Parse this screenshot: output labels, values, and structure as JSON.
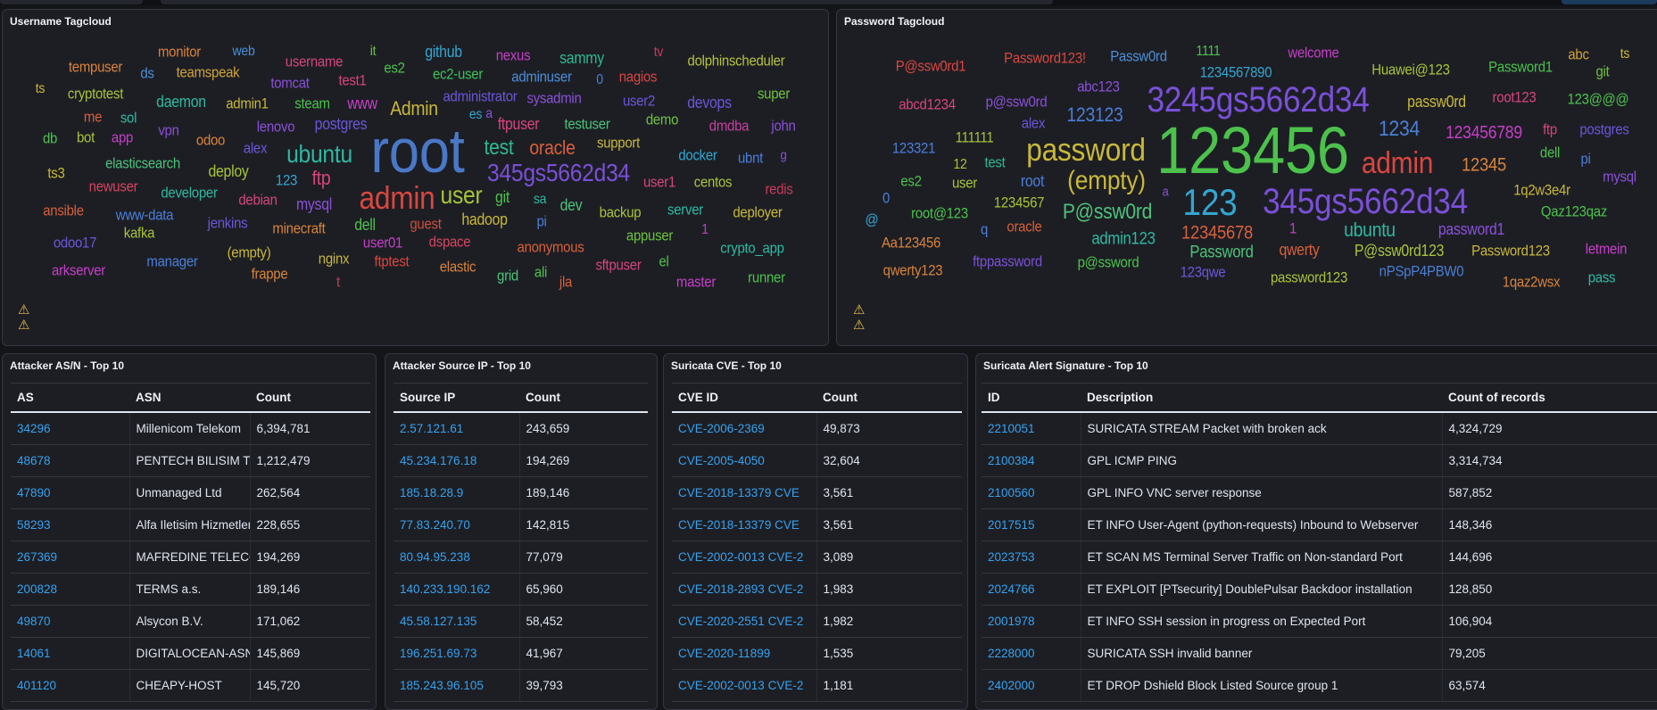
{
  "username_cloud": {
    "title": "Username Tagcloud",
    "warning_icon": "warning-triangle-icon",
    "words": [
      {
        "text": "monitor",
        "color": "#d8833a"
      },
      {
        "text": "web",
        "color": "#4a8fd8"
      },
      {
        "text": "username",
        "color": "#d6457f"
      },
      {
        "text": "it",
        "color": "#6cc23e"
      },
      {
        "text": "github",
        "color": "#34a6d0"
      },
      {
        "text": "nexus",
        "color": "#c63fc8"
      },
      {
        "text": "sammy",
        "color": "#2fb890"
      },
      {
        "text": "tv",
        "color": "#c93a5a"
      },
      {
        "text": "dolphinscheduler",
        "color": "#b4c23a"
      },
      {
        "text": "tempuser",
        "color": "#d8833a"
      },
      {
        "text": "ds",
        "color": "#4a8fd8"
      },
      {
        "text": "teamspeak",
        "color": "#d0a33a"
      },
      {
        "text": "tomcat",
        "color": "#8a50d8"
      },
      {
        "text": "test1",
        "color": "#d6457f"
      },
      {
        "text": "es2",
        "color": "#4cc24c"
      },
      {
        "text": "ec2-user",
        "color": "#3ec15a"
      },
      {
        "text": "adminuser",
        "color": "#4a8fd8"
      },
      {
        "text": "0",
        "color": "#4a7fd8"
      },
      {
        "text": "nagios",
        "color": "#d9473f"
      },
      {
        "text": "ts",
        "color": "#c8b83a"
      },
      {
        "text": "cryptotest",
        "color": "#a6c43a"
      },
      {
        "text": "daemon",
        "color": "#2fb8a0"
      },
      {
        "text": "admin1",
        "color": "#c8b83a"
      },
      {
        "text": "steam",
        "color": "#4cc24c"
      },
      {
        "text": "www",
        "color": "#c63fc8"
      },
      {
        "text": "administrator",
        "color": "#6a56d8"
      },
      {
        "text": "a",
        "color": "#8a50d8"
      },
      {
        "text": "sysadmin",
        "color": "#8a50d8"
      },
      {
        "text": "user2",
        "color": "#6a56d8"
      },
      {
        "text": "devops",
        "color": "#6a56d8"
      },
      {
        "text": "super",
        "color": "#6cc23e"
      },
      {
        "text": "me",
        "color": "#d8603a"
      },
      {
        "text": "sol",
        "color": "#2fb8a0"
      },
      {
        "text": "lenovo",
        "color": "#8a50d8"
      },
      {
        "text": "postgres",
        "color": "#6a56d8"
      },
      {
        "text": "Admin",
        "color": "#c8b83a"
      },
      {
        "text": "es",
        "color": "#34a6d0"
      },
      {
        "text": "ftpuser",
        "color": "#d6457f"
      },
      {
        "text": "testuser",
        "color": "#4cc27a"
      },
      {
        "text": "demo",
        "color": "#6cc23e"
      },
      {
        "text": "dmdba",
        "color": "#c63fa0"
      },
      {
        "text": "john",
        "color": "#8a50d8"
      },
      {
        "text": "db",
        "color": "#4cc24c"
      },
      {
        "text": "bot",
        "color": "#a6c43a"
      },
      {
        "text": "app",
        "color": "#c63fc8"
      },
      {
        "text": "vpn",
        "color": "#8a50d8"
      },
      {
        "text": "odoo",
        "color": "#d8833a"
      },
      {
        "text": "alex",
        "color": "#6a56d8"
      },
      {
        "text": "ubuntu",
        "color": "#2fb8a0"
      },
      {
        "text": "root",
        "color": "#4a78c8"
      },
      {
        "text": "test",
        "color": "#2fb890"
      },
      {
        "text": "oracle",
        "color": "#d8603a"
      },
      {
        "text": "support",
        "color": "#c8b83a"
      },
      {
        "text": "docker",
        "color": "#34a6d0"
      },
      {
        "text": "ubnt",
        "color": "#4a7fd8"
      },
      {
        "text": "g",
        "color": "#8a50d8"
      },
      {
        "text": "ts3",
        "color": "#c8b83a"
      },
      {
        "text": "elasticsearch",
        "color": "#4cc27a"
      },
      {
        "text": "deploy",
        "color": "#a6c43a"
      },
      {
        "text": "123",
        "color": "#34a6d0"
      },
      {
        "text": "ftp",
        "color": "#d6457f"
      },
      {
        "text": "345gs5662d34",
        "color": "#7a50d8"
      },
      {
        "text": "user1",
        "color": "#d6457f"
      },
      {
        "text": "centos",
        "color": "#a6c43a"
      },
      {
        "text": "redis",
        "color": "#c93a5a"
      },
      {
        "text": "newuser",
        "color": "#d6455f"
      },
      {
        "text": "developer",
        "color": "#2fb8a0"
      },
      {
        "text": "debian",
        "color": "#d6457f"
      },
      {
        "text": "mysql",
        "color": "#8a50d8"
      },
      {
        "text": "admin",
        "color": "#d9473f"
      },
      {
        "text": "user",
        "color": "#a6c43a"
      },
      {
        "text": "git",
        "color": "#4cc24c"
      },
      {
        "text": "sa",
        "color": "#2fb8a0"
      },
      {
        "text": "dev",
        "color": "#4cc27a"
      },
      {
        "text": "ansible",
        "color": "#d8603a"
      },
      {
        "text": "www-data",
        "color": "#4a7fd8"
      },
      {
        "text": "jenkins",
        "color": "#6a56d8"
      },
      {
        "text": "minecraft",
        "color": "#d8833a"
      },
      {
        "text": "dell",
        "color": "#4cc24c"
      },
      {
        "text": "guest",
        "color": "#c9503f"
      },
      {
        "text": "hadoop",
        "color": "#c8b83a"
      },
      {
        "text": "pi",
        "color": "#4a7fd8"
      },
      {
        "text": "backup",
        "color": "#a6c43a"
      },
      {
        "text": "server",
        "color": "#2fb8a0"
      },
      {
        "text": "deployer",
        "color": "#c8b83a"
      },
      {
        "text": "kafka",
        "color": "#a6c43a"
      },
      {
        "text": "odoo17",
        "color": "#6a56d8"
      },
      {
        "text": "user01",
        "color": "#c63fc8"
      },
      {
        "text": "dspace",
        "color": "#d6455f"
      },
      {
        "text": "anonymous",
        "color": "#d8603a"
      },
      {
        "text": "appuser",
        "color": "#6cc23e"
      },
      {
        "text": "1",
        "color": "#c63fc8"
      },
      {
        "text": "crypto_app",
        "color": "#2fb8a0"
      },
      {
        "text": "(empty)",
        "color": "#c8b83a"
      },
      {
        "text": "manager",
        "color": "#4a7fd8"
      },
      {
        "text": "nginx",
        "color": "#c8b83a"
      },
      {
        "text": "ftptest",
        "color": "#d9473f"
      },
      {
        "text": "elastic",
        "color": "#d8833a"
      },
      {
        "text": "grid",
        "color": "#4cc27a"
      },
      {
        "text": "ali",
        "color": "#4cc24c"
      },
      {
        "text": "jla",
        "color": "#d8603a"
      },
      {
        "text": "sftpuser",
        "color": "#d6457f"
      },
      {
        "text": "el",
        "color": "#4cc24c"
      },
      {
        "text": "master",
        "color": "#c63fc8"
      },
      {
        "text": "runner",
        "color": "#4cc24c"
      },
      {
        "text": "arkserver",
        "color": "#c63fc8"
      },
      {
        "text": "frappe",
        "color": "#d8833a"
      },
      {
        "text": "t",
        "color": "#c93a5a"
      }
    ]
  },
  "password_cloud": {
    "title": "Password Tagcloud",
    "warning_icon": "warning-triangle-icon",
    "words": [
      {
        "text": "P@ssw0rd1",
        "color": "#d9473f"
      },
      {
        "text": "Password123!",
        "color": "#d9473f"
      },
      {
        "text": "Passw0rd",
        "color": "#4a8fd8"
      },
      {
        "text": "1111",
        "color": "#4cc24c"
      },
      {
        "text": "1234567890",
        "color": "#34a6d0"
      },
      {
        "text": "welcome",
        "color": "#c63fc8"
      },
      {
        "text": "Huawei@123",
        "color": "#a6c43a"
      },
      {
        "text": "Password1",
        "color": "#4cc24c"
      },
      {
        "text": "abc",
        "color": "#d0a33a"
      },
      {
        "text": "ts",
        "color": "#c8b83a"
      },
      {
        "text": "git",
        "color": "#6cc23e"
      },
      {
        "text": "abc123",
        "color": "#8a50d8"
      },
      {
        "text": "abcd1234",
        "color": "#d6457f"
      },
      {
        "text": "p@ssw0rd",
        "color": "#8a50d8"
      },
      {
        "text": "123123",
        "color": "#4a7fd8"
      },
      {
        "text": "3245gs5662d34",
        "color": "#7a50d8"
      },
      {
        "text": "passw0rd",
        "color": "#c8b83a"
      },
      {
        "text": "root123",
        "color": "#d6457f"
      },
      {
        "text": "123@@@",
        "color": "#4cc24c"
      },
      {
        "text": "alex",
        "color": "#6a56d8"
      },
      {
        "text": "123321",
        "color": "#4a7fd8"
      },
      {
        "text": "111111",
        "color": "#a6c43a"
      },
      {
        "text": "12",
        "color": "#a6c43a"
      },
      {
        "text": "test",
        "color": "#2fb890"
      },
      {
        "text": "password",
        "color": "#c8b83a"
      },
      {
        "text": "123456",
        "color": "#4cc24c"
      },
      {
        "text": "1234",
        "color": "#4a7fd8"
      },
      {
        "text": "123456789",
        "color": "#c63fc8"
      },
      {
        "text": "ftp",
        "color": "#d6457f"
      },
      {
        "text": "postgres",
        "color": "#6a56d8"
      },
      {
        "text": "admin",
        "color": "#d9473f"
      },
      {
        "text": "12345",
        "color": "#d8833a"
      },
      {
        "text": "dell",
        "color": "#4cc24c"
      },
      {
        "text": "pi",
        "color": "#4a7fd8"
      },
      {
        "text": "mysql",
        "color": "#8a50d8"
      },
      {
        "text": "es2",
        "color": "#4cc24c"
      },
      {
        "text": "user",
        "color": "#a6c43a"
      },
      {
        "text": "root",
        "color": "#4a7fd8"
      },
      {
        "text": "(empty)",
        "color": "#c8b83a"
      },
      {
        "text": "a",
        "color": "#8a50d8"
      },
      {
        "text": "123",
        "color": "#34a6d0"
      },
      {
        "text": "345gs5662d34",
        "color": "#7a50d8"
      },
      {
        "text": "1q2w3e4r",
        "color": "#c8b83a"
      },
      {
        "text": "0",
        "color": "#4a7fd8"
      },
      {
        "text": "root@123",
        "color": "#4cc24c"
      },
      {
        "text": "1234567",
        "color": "#a6c43a"
      },
      {
        "text": "P@ssw0rd",
        "color": "#4cc27a"
      },
      {
        "text": "Qaz123qaz",
        "color": "#4cc24c"
      },
      {
        "text": "@",
        "color": "#34a6d0"
      },
      {
        "text": "q",
        "color": "#4a7fd8"
      },
      {
        "text": "oracle",
        "color": "#d8603a"
      },
      {
        "text": "12345678",
        "color": "#d8603a"
      },
      {
        "text": "1",
        "color": "#c63fc8"
      },
      {
        "text": "ubuntu",
        "color": "#2fb8a0"
      },
      {
        "text": "password1",
        "color": "#8a50d8"
      },
      {
        "text": "admin123",
        "color": "#2fb8a0"
      },
      {
        "text": "Aa123456",
        "color": "#d8833a"
      },
      {
        "text": "Password",
        "color": "#4cc27a"
      },
      {
        "text": "qwerty",
        "color": "#d8603a"
      },
      {
        "text": "P@ssw0rd123",
        "color": "#a6c43a"
      },
      {
        "text": "Password123",
        "color": "#c8b83a"
      },
      {
        "text": "letmein",
        "color": "#c63fc8"
      },
      {
        "text": "ftppassword",
        "color": "#7a50d8"
      },
      {
        "text": "p@ssword",
        "color": "#4cc24c"
      },
      {
        "text": "qwerty123",
        "color": "#d8833a"
      },
      {
        "text": "123qwe",
        "color": "#6a56d8"
      },
      {
        "text": "password123",
        "color": "#a6c43a"
      },
      {
        "text": "nPSpP4PBW0",
        "color": "#4a7fd8"
      },
      {
        "text": "1qaz2wsx",
        "color": "#d8833a"
      },
      {
        "text": "pass",
        "color": "#2fb8a0"
      }
    ]
  },
  "tables": [
    {
      "title": "Attacker AS/N - Top 10",
      "columns": [
        "AS",
        "ASN",
        "Count"
      ],
      "rows": [
        [
          "34296",
          "Millenicom Telekom",
          "6,394,781"
        ],
        [
          "48678",
          "PENTECH BILISIM TEKNOLOJI",
          "1,212,479"
        ],
        [
          "47890",
          "Unmanaged Ltd",
          "262,564"
        ],
        [
          "58293",
          "Alfa Iletisim Hizmetleri",
          "228,655"
        ],
        [
          "267369",
          "MAFREDINE TELECOM",
          "194,269"
        ],
        [
          "200828",
          "TERMS a.s.",
          "189,146"
        ],
        [
          "49870",
          "Alsycon B.V.",
          "171,062"
        ],
        [
          "14061",
          "DIGITALOCEAN-ASN",
          "145,869"
        ],
        [
          "401120",
          "CHEAPY-HOST",
          "145,720"
        ]
      ]
    },
    {
      "title": "Attacker Source IP - Top 10",
      "columns": [
        "Source IP",
        "Count"
      ],
      "rows": [
        [
          "2.57.121.61",
          "243,659"
        ],
        [
          "45.234.176.18",
          "194,269"
        ],
        [
          "185.18.28.9",
          "189,146"
        ],
        [
          "77.83.240.70",
          "142,815"
        ],
        [
          "80.94.95.238",
          "77,079"
        ],
        [
          "140.233.190.162",
          "65,960"
        ],
        [
          "45.58.127.135",
          "58,452"
        ],
        [
          "196.251.69.73",
          "41,967"
        ],
        [
          "185.243.96.105",
          "39,793"
        ]
      ]
    },
    {
      "title": "Suricata CVE - Top 10",
      "columns": [
        "CVE ID",
        "Count"
      ],
      "rows": [
        [
          "CVE-2006-2369",
          "49,873"
        ],
        [
          "CVE-2005-4050",
          "32,604"
        ],
        [
          "CVE-2018-13379 CVE",
          "3,561"
        ],
        [
          "CVE-2018-13379 CVE",
          "3,561"
        ],
        [
          "CVE-2002-0013 CVE-2",
          "3,089"
        ],
        [
          "CVE-2018-2893 CVE-2",
          "1,983"
        ],
        [
          "CVE-2020-2551 CVE-2",
          "1,982"
        ],
        [
          "CVE-2020-11899",
          "1,535"
        ],
        [
          "CVE-2002-0013 CVE-2",
          "1,181"
        ]
      ]
    },
    {
      "title": "Suricata Alert Signature - Top 10",
      "columns": [
        "ID",
        "Description",
        "Count of records"
      ],
      "rows": [
        [
          "2210051",
          "SURICATA STREAM Packet with broken ack",
          "4,324,729"
        ],
        [
          "2100384",
          "GPL ICMP PING",
          "3,314,734"
        ],
        [
          "2100560",
          "GPL INFO VNC server response",
          "587,852"
        ],
        [
          "2017515",
          "ET INFO User-Agent (python-requests) Inbound to Webserver",
          "148,346"
        ],
        [
          "2023753",
          "ET SCAN MS Terminal Server Traffic on Non-standard Port",
          "144,696"
        ],
        [
          "2024766",
          "ET EXPLOIT [PTsecurity] DoublePulsar Backdoor installation",
          "128,850"
        ],
        [
          "2001978",
          "ET INFO SSH session in progress on Expected Port",
          "106,904"
        ],
        [
          "2228000",
          "SURICATA SSH invalid banner",
          "79,205"
        ],
        [
          "2402000",
          "ET DROP Dshield Block Listed Source group 1",
          "63,574"
        ]
      ]
    }
  ],
  "colors": {
    "link": "#36a2ef",
    "panel_bg": "#1d1e24",
    "page_bg": "#141519",
    "warning": "#e7c14a"
  }
}
